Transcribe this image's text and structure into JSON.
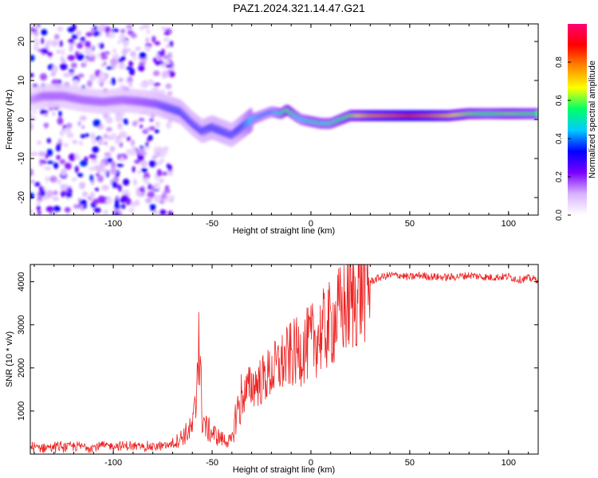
{
  "title": "PAZ1.2024.321.14.47.G21",
  "colors": {
    "snr_line": "#ee2222",
    "axis": "#000000"
  },
  "chart_data": [
    {
      "type": "heatmap",
      "title": "PAZ1.2024.321.14.47.G21",
      "xlabel": "Height of straight line (km)",
      "ylabel": "Frequency (Hz)",
      "xlim": [
        -142,
        115
      ],
      "ylim": [
        -24.5,
        24.5
      ],
      "xticks": [
        -100,
        -50,
        0,
        50,
        100
      ],
      "xtick_labels": [
        "-100",
        "-50",
        "0",
        "50",
        "100"
      ],
      "yticks": [
        -20,
        -10,
        0,
        10,
        20
      ],
      "ytick_labels": [
        "-20",
        "-10",
        "0",
        "10",
        "20"
      ],
      "colorbar": {
        "label": "Normalized spectral amplitude",
        "range": [
          0,
          1
        ],
        "ticks": [
          0,
          0.2,
          0.4,
          0.6,
          0.8
        ],
        "tick_labels": [
          "0.0",
          "0.2",
          "0.4",
          "0.6",
          "0.8"
        ],
        "colormap": [
          "#ffffff",
          "#d9b3ff",
          "#7a00ff",
          "#0000ff",
          "#00ccff",
          "#00ff66",
          "#ffff00",
          "#ff8800",
          "#ff0000",
          "#ff0077"
        ]
      },
      "ridge": {
        "x": [
          -142,
          -135,
          -125,
          -115,
          -105,
          -95,
          -85,
          -78,
          -72,
          -66,
          -60,
          -55,
          -50,
          -45,
          -40,
          -35,
          -30,
          -25,
          -20,
          -15,
          -12,
          -8,
          -5,
          0,
          5,
          10,
          15,
          20,
          30,
          40,
          50,
          60,
          70,
          80,
          90,
          100,
          115
        ],
        "freq": [
          5,
          6,
          6,
          5,
          4.5,
          5,
          4.5,
          4,
          3,
          2,
          -1,
          -3,
          -2,
          -3,
          -4,
          -2,
          0,
          1,
          2,
          1.5,
          2.5,
          1,
          0,
          -0.5,
          -1,
          -1,
          0,
          1,
          1,
          1,
          1,
          1,
          1,
          1.5,
          1.5,
          1.5,
          1.5
        ],
        "amplitude": [
          0.15,
          0.2,
          0.2,
          0.2,
          0.2,
          0.2,
          0.22,
          0.25,
          0.3,
          0.32,
          0.3,
          0.3,
          0.32,
          0.32,
          0.3,
          0.35,
          0.45,
          0.4,
          0.4,
          0.5,
          0.6,
          0.5,
          0.45,
          0.5,
          0.5,
          0.5,
          0.55,
          0.6,
          0.75,
          0.8,
          0.85,
          0.8,
          0.7,
          0.6,
          0.55,
          0.6,
          0.55
        ]
      }
    },
    {
      "type": "line",
      "xlabel": "Height of straight line (km)",
      "ylabel": "SNR (10 * v/v)",
      "xlim": [
        -142,
        115
      ],
      "ylim": [
        0,
        4400
      ],
      "xticks": [
        -100,
        -50,
        0,
        50,
        100
      ],
      "xtick_labels": [
        "-100",
        "-50",
        "0",
        "50",
        "100"
      ],
      "yticks": [
        1000,
        2000,
        3000,
        4000
      ],
      "ytick_labels": [
        "1000",
        "2000",
        "3000",
        "4000"
      ],
      "x": [
        -142,
        -130,
        -120,
        -110,
        -100,
        -90,
        -80,
        -72,
        -68,
        -64,
        -60,
        -58,
        -57,
        -56,
        -55,
        -53,
        -50,
        -47,
        -45,
        -42,
        -40,
        -38,
        -35,
        -32,
        -30,
        -25,
        -20,
        -15,
        -10,
        -5,
        0,
        5,
        10,
        15,
        20,
        25,
        30,
        35,
        40,
        45,
        50,
        55,
        60,
        70,
        80,
        90,
        100,
        105,
        110,
        115
      ],
      "y": [
        150,
        170,
        180,
        170,
        200,
        180,
        170,
        200,
        300,
        450,
        600,
        1200,
        3300,
        1800,
        900,
        600,
        500,
        400,
        350,
        300,
        300,
        900,
        1300,
        1500,
        1600,
        1700,
        1900,
        2100,
        2300,
        2400,
        2600,
        2800,
        3000,
        3300,
        3500,
        3800,
        4000,
        4100,
        4150,
        4150,
        4100,
        4150,
        4120,
        4100,
        4150,
        4100,
        4120,
        4050,
        4080,
        4050
      ]
    }
  ]
}
